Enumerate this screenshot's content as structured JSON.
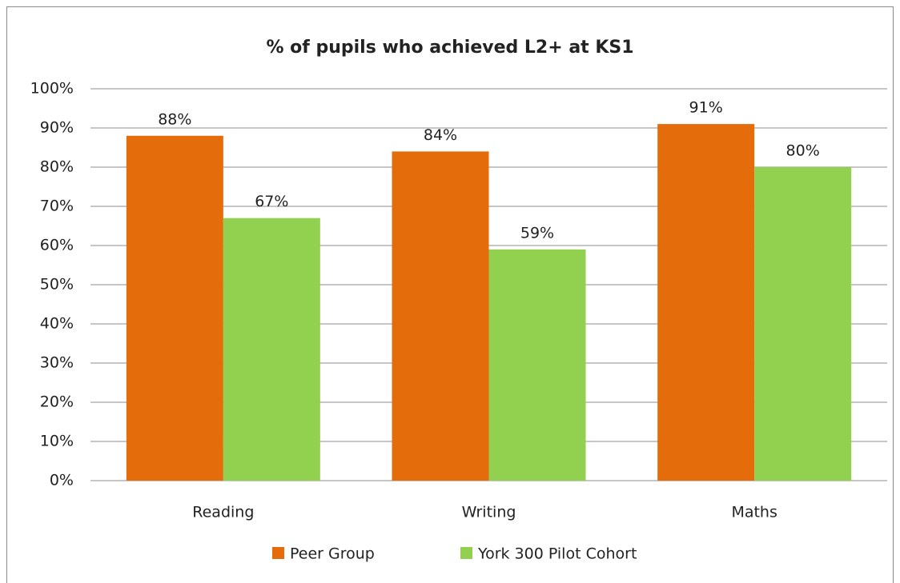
{
  "chart_data": {
    "type": "bar",
    "title": "% of pupils who achieved L2+ at KS1",
    "categories": [
      "Reading",
      "Writing",
      "Maths"
    ],
    "series": [
      {
        "name": "Peer Group",
        "color": "#e46c0a",
        "values": [
          88,
          84,
          91
        ],
        "value_labels": [
          "88%",
          "84%",
          "91%"
        ]
      },
      {
        "name": "York 300 Pilot Cohort",
        "color": "#92d050",
        "values": [
          67,
          59,
          80
        ],
        "value_labels": [
          "67%",
          "59%",
          "80%"
        ]
      }
    ],
    "ylim": [
      0,
      100
    ],
    "yticks": [
      {
        "value": 0,
        "label": "0%"
      },
      {
        "value": 10,
        "label": "10%"
      },
      {
        "value": 20,
        "label": "20%"
      },
      {
        "value": 30,
        "label": "30%"
      },
      {
        "value": 40,
        "label": "40%"
      },
      {
        "value": 50,
        "label": "50%"
      },
      {
        "value": 60,
        "label": "60%"
      },
      {
        "value": 70,
        "label": "70%"
      },
      {
        "value": 80,
        "label": "80%"
      },
      {
        "value": 90,
        "label": "90%"
      },
      {
        "value": 100,
        "label": "100%"
      }
    ],
    "grid": true,
    "legend": "bottom"
  }
}
